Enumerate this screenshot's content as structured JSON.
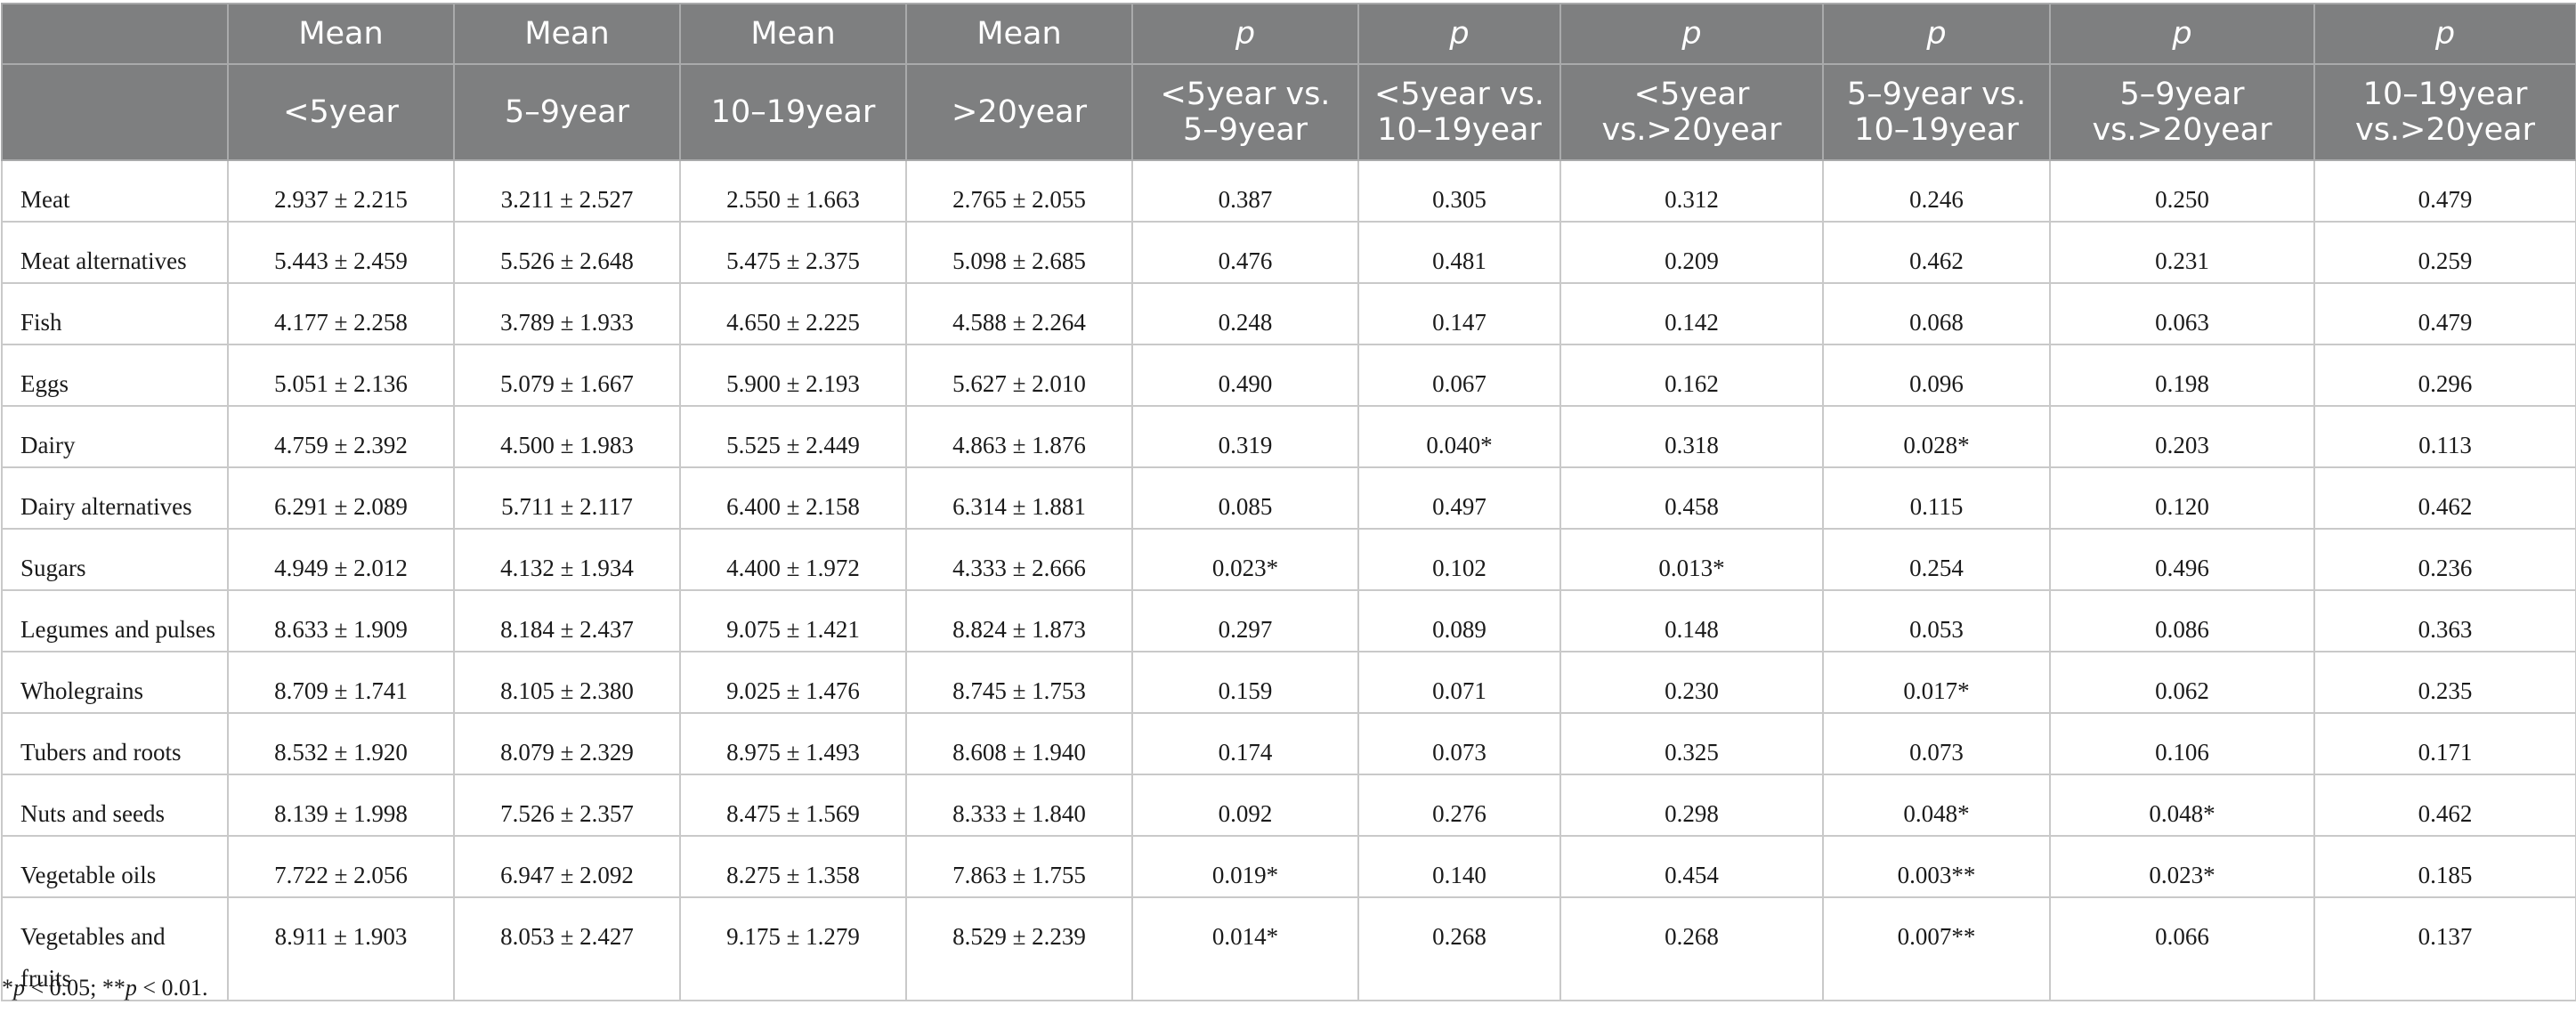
{
  "header": {
    "row1": [
      "",
      "Mean",
      "Mean",
      "Mean",
      "Mean",
      "p",
      "p",
      "p",
      "p",
      "p",
      "p"
    ],
    "row2": [
      "",
      "<5year",
      "5–9year",
      "10–19year",
      ">20year",
      "<5year vs. 5–9year",
      "<5year vs. 10–19year",
      "<5year vs.>20year",
      "5–9year vs. 10–19year",
      "5–9year vs.>20year",
      "10–19year vs.>20year"
    ]
  },
  "rows": [
    {
      "label": "Meat",
      "cells": [
        "2.937 ± 2.215",
        "3.211 ± 2.527",
        "2.550 ± 1.663",
        "2.765 ± 2.055",
        "0.387",
        "0.305",
        "0.312",
        "0.246",
        "0.250",
        "0.479"
      ]
    },
    {
      "label": "Meat alternatives",
      "cells": [
        "5.443 ± 2.459",
        "5.526 ± 2.648",
        "5.475 ± 2.375",
        "5.098 ± 2.685",
        "0.476",
        "0.481",
        "0.209",
        "0.462",
        "0.231",
        "0.259"
      ]
    },
    {
      "label": "Fish",
      "cells": [
        "4.177 ± 2.258",
        "3.789 ± 1.933",
        "4.650 ± 2.225",
        "4.588 ± 2.264",
        "0.248",
        "0.147",
        "0.142",
        "0.068",
        "0.063",
        "0.479"
      ]
    },
    {
      "label": "Eggs",
      "cells": [
        "5.051 ± 2.136",
        "5.079 ± 1.667",
        "5.900 ± 2.193",
        "5.627 ± 2.010",
        "0.490",
        "0.067",
        "0.162",
        "0.096",
        "0.198",
        "0.296"
      ]
    },
    {
      "label": "Dairy",
      "cells": [
        "4.759 ± 2.392",
        "4.500 ± 1.983",
        "5.525 ± 2.449",
        "4.863 ± 1.876",
        "0.319",
        "0.040*",
        "0.318",
        "0.028*",
        "0.203",
        "0.113"
      ]
    },
    {
      "label": "Dairy alternatives",
      "cells": [
        "6.291 ± 2.089",
        "5.711 ± 2.117",
        "6.400 ± 2.158",
        "6.314 ± 1.881",
        "0.085",
        "0.497",
        "0.458",
        "0.115",
        "0.120",
        "0.462"
      ]
    },
    {
      "label": "Sugars",
      "cells": [
        "4.949 ± 2.012",
        "4.132 ± 1.934",
        "4.400 ± 1.972",
        "4.333 ± 2.666",
        "0.023*",
        "0.102",
        "0.013*",
        "0.254",
        "0.496",
        "0.236"
      ]
    },
    {
      "label": "Legumes and pulses",
      "cells": [
        "8.633 ± 1.909",
        "8.184 ± 2.437",
        "9.075 ± 1.421",
        "8.824 ± 1.873",
        "0.297",
        "0.089",
        "0.148",
        "0.053",
        "0.086",
        "0.363"
      ]
    },
    {
      "label": "Wholegrains",
      "cells": [
        "8.709 ± 1.741",
        "8.105 ± 2.380",
        "9.025 ± 1.476",
        "8.745 ± 1.753",
        "0.159",
        "0.071",
        "0.230",
        "0.017*",
        "0.062",
        "0.235"
      ]
    },
    {
      "label": "Tubers and roots",
      "cells": [
        "8.532 ± 1.920",
        "8.079 ± 2.329",
        "8.975 ± 1.493",
        "8.608 ± 1.940",
        "0.174",
        "0.073",
        "0.325",
        "0.073",
        "0.106",
        "0.171"
      ]
    },
    {
      "label": "Nuts and seeds",
      "cells": [
        "8.139 ± 1.998",
        "7.526 ± 2.357",
        "8.475 ± 1.569",
        "8.333 ± 1.840",
        "0.092",
        "0.276",
        "0.298",
        "0.048*",
        "0.048*",
        "0.462"
      ]
    },
    {
      "label": "Vegetable oils",
      "cells": [
        "7.722 ± 2.056",
        "6.947 ± 2.092",
        "8.275 ± 1.358",
        "7.863 ± 1.755",
        "0.019*",
        "0.140",
        "0.454",
        "0.003**",
        "0.023*",
        "0.185"
      ]
    },
    {
      "label": "Vegetables and fruits",
      "cells": [
        "8.911 ± 1.903",
        "8.053 ± 2.427",
        "9.175 ± 1.279",
        "8.529 ± 2.239",
        "0.014*",
        "0.268",
        "0.268",
        "0.007**",
        "0.066",
        "0.137"
      ]
    }
  ],
  "footnote": {
    "a": "*",
    "b": "p",
    "c": " < 0.05; **",
    "d": "p",
    "e": " < 0.01."
  }
}
